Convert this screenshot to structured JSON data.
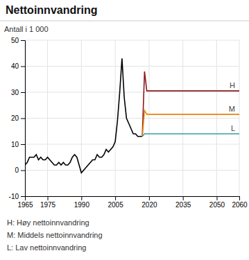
{
  "chart_data": {
    "type": "line",
    "title": "Nettoinnvandring",
    "ylabel": "Antall i 1 000",
    "xlim": [
      1965,
      2060
    ],
    "ylim": [
      -10,
      50
    ],
    "xticks": [
      1965,
      1975,
      1990,
      2005,
      2020,
      2035,
      2050,
      2060
    ],
    "yticks": [
      -10,
      0,
      10,
      20,
      30,
      40,
      50
    ],
    "grid": true,
    "series": [
      {
        "color": "#000000",
        "x": [
          1965,
          1966,
          1967,
          1968,
          1969,
          1970,
          1971,
          1972,
          1973,
          1974,
          1975,
          1976,
          1977,
          1978,
          1979,
          1980,
          1981,
          1982,
          1983,
          1984,
          1985,
          1986,
          1987,
          1988,
          1989,
          1990,
          1991,
          1992,
          1993,
          1994,
          1995,
          1996,
          1997,
          1998,
          1999,
          2000,
          2001,
          2002,
          2003,
          2004,
          2005,
          2006,
          2007,
          2008,
          2009,
          2010,
          2011,
          2012,
          2013,
          2014,
          2015,
          2016,
          2017
        ],
        "values": [
          2,
          3,
          5,
          5,
          5,
          6,
          4,
          5,
          4,
          4,
          5,
          4,
          3,
          2,
          2,
          3,
          2,
          3,
          2,
          2,
          3,
          5,
          6,
          5,
          2,
          -1,
          0,
          1,
          2,
          3,
          4,
          4,
          6,
          5,
          5,
          6,
          8,
          7,
          8,
          9,
          11,
          19,
          30,
          43,
          28,
          20,
          18,
          16,
          14,
          14,
          13,
          13,
          13
        ]
      },
      {
        "name": "H",
        "color": "#8B1A1A",
        "x": [
          2017,
          2018,
          2019,
          2060
        ],
        "values": [
          13,
          38,
          30.5,
          30.5
        ]
      },
      {
        "name": "M",
        "color": "#E8820A",
        "x": [
          2017,
          2018,
          2019,
          2060
        ],
        "values": [
          13,
          23,
          21.5,
          21.5
        ]
      },
      {
        "name": "L",
        "color": "#3A9E9E",
        "x": [
          2017,
          2018,
          2019,
          2060
        ],
        "values": [
          13,
          14,
          14,
          14
        ]
      }
    ],
    "annotations": [
      "H: Høy nettoinnvandring",
      "M: Middels nettoinnvandring",
      "L: Lav nettoinnvandring"
    ]
  }
}
